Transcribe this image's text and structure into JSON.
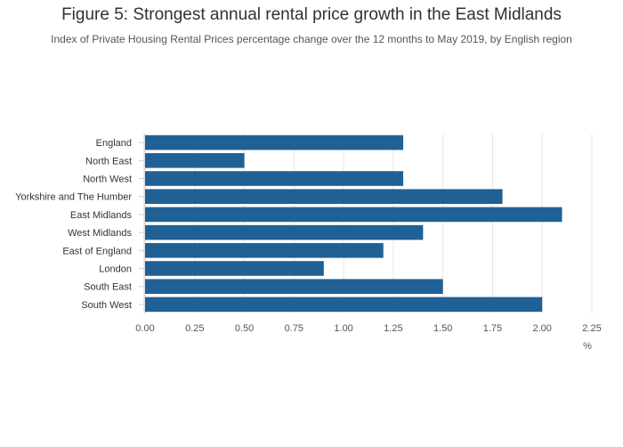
{
  "chart_data": {
    "type": "bar",
    "orientation": "horizontal",
    "title": "Figure 5: Strongest annual rental price growth in the East Midlands",
    "subtitle": "Index of Private Housing Rental Prices percentage change over the 12 months to May 2019, by English region",
    "categories": [
      "England",
      "North East",
      "North West",
      "Yorkshire and The Humber",
      "East Midlands",
      "West Midlands",
      "East of England",
      "London",
      "South East",
      "South West"
    ],
    "values": [
      1.3,
      0.5,
      1.3,
      1.8,
      2.1,
      1.4,
      1.2,
      0.9,
      1.5,
      2.0
    ],
    "xlabel": "%",
    "xlim": [
      0,
      2.25
    ],
    "xticks": [
      "0.00",
      "0.25",
      "0.50",
      "0.75",
      "1.00",
      "1.25",
      "1.50",
      "1.75",
      "2.00",
      "2.25"
    ],
    "grid": true,
    "bar_color": "#206095"
  }
}
